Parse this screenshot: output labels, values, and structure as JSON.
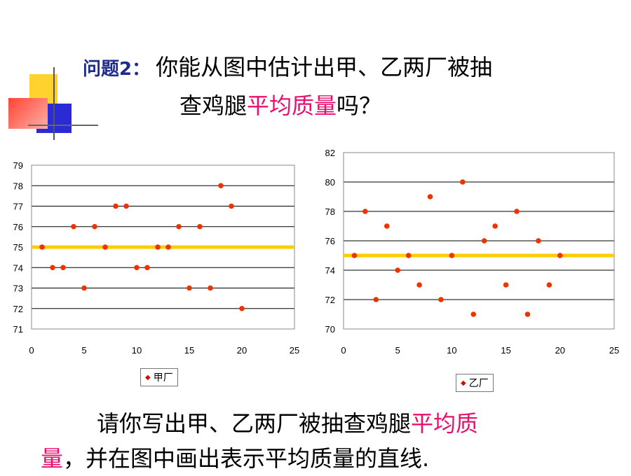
{
  "title": {
    "prefix": "问题2：",
    "line1": "你能从图中估计出甲、乙两厂被抽",
    "line2_pre": "查鸡腿",
    "line2_hl": "平均质量",
    "line2_post": "吗？"
  },
  "instruction": {
    "pre": "请你写出甲、乙两厂被抽查鸡腿",
    "hl1": "平均质",
    "hl2": "量",
    "post": "，并在图中画出表示平均质量的直线."
  },
  "colors": {
    "accent": "#e8106e",
    "point": "#ee3300",
    "meanline": "#ffcc00",
    "titleblue": "#1f2b8c"
  },
  "chart_data": [
    {
      "type": "scatter",
      "series": [
        {
          "name": "甲厂",
          "x": [
            1,
            2,
            3,
            4,
            5,
            6,
            7,
            8,
            9,
            10,
            11,
            12,
            13,
            14,
            15,
            16,
            17,
            18,
            19,
            20
          ],
          "y": [
            75,
            74,
            74,
            76,
            73,
            76,
            75,
            77,
            77,
            74,
            74,
            75,
            75,
            76,
            73,
            76,
            73,
            78,
            77,
            72
          ]
        }
      ],
      "xlim": [
        0,
        25
      ],
      "ylim": [
        71,
        79
      ],
      "xticks": [
        "0",
        "5",
        "10",
        "15",
        "20",
        "25"
      ],
      "yticks": [
        "71",
        "72",
        "73",
        "74",
        "75",
        "76",
        "77",
        "78",
        "79"
      ],
      "mean_line": 75,
      "grid": "horizontal",
      "legend": "bottom"
    },
    {
      "type": "scatter",
      "series": [
        {
          "name": "乙厂",
          "x": [
            1,
            2,
            3,
            4,
            5,
            6,
            7,
            8,
            9,
            10,
            11,
            12,
            13,
            14,
            15,
            16,
            17,
            18,
            19,
            20
          ],
          "y": [
            75,
            78,
            72,
            77,
            74,
            75,
            73,
            79,
            72,
            75,
            80,
            71,
            76,
            77,
            73,
            78,
            71,
            76,
            73,
            75
          ]
        }
      ],
      "xlim": [
        0,
        25
      ],
      "ylim": [
        70,
        82
      ],
      "xticks": [
        "0",
        "5",
        "10",
        "15",
        "20",
        "25"
      ],
      "yticks": [
        "70",
        "72",
        "74",
        "76",
        "78",
        "80",
        "82"
      ],
      "mean_line": 75,
      "grid": "horizontal",
      "legend": "bottom"
    }
  ]
}
